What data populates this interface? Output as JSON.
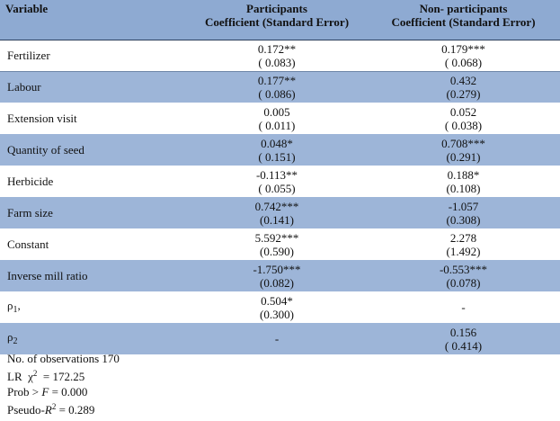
{
  "header": {
    "variable": "Variable",
    "participants_line1": "Participants",
    "participants_line2": "Coefficient (Standard Error)",
    "nonparticipants_line1": "Non- participants",
    "nonparticipants_line2": "Coefficient (Standard Error)"
  },
  "rows": [
    {
      "variable": "Fertilizer",
      "p_coef": "0.172**",
      "p_se": "( 0.083)",
      "n_coef": "0.179***",
      "n_se": "( 0.068)"
    },
    {
      "variable": "Labour",
      "p_coef": "0.177**",
      "p_se": "( 0.086)",
      "n_coef": "0.432",
      "n_se": "(0.279)"
    },
    {
      "variable": "Extension visit",
      "p_coef": "0.005",
      "p_se": "( 0.011)",
      "n_coef": "0.052",
      "n_se": "( 0.038)"
    },
    {
      "variable": "Quantity of seed",
      "p_coef": "0.048*",
      "p_se": "( 0.151)",
      "n_coef": "0.708***",
      "n_se": "(0.291)"
    },
    {
      "variable": "Herbicide",
      "p_coef": "-0.113**",
      "p_se": "( 0.055)",
      "n_coef": "0.188*",
      "n_se": "(0.108)"
    },
    {
      "variable": "Farm size",
      "p_coef": "0.742***",
      "p_se": "(0.141)",
      "n_coef": "-1.057",
      "n_se": "(0.308)"
    },
    {
      "variable": "Constant",
      "p_coef": "5.592***",
      "p_se": "(0.590)",
      "n_coef": "2.278",
      "n_se": "(1.492)"
    },
    {
      "variable": "Inverse mill ratio",
      "p_coef": "-1.750***",
      "p_se": "(0.082)",
      "n_coef": "-0.553***",
      "n_se": "(0.078)"
    }
  ],
  "rho1": {
    "label": "ρ",
    "sub": "1",
    "suffix": ",",
    "p_coef": "0.504*",
    "p_se": "(0.300)",
    "n_coef": "-",
    "n_se": ""
  },
  "rho2": {
    "label": "ρ",
    "sub": "2",
    "suffix": "",
    "p_coef": "-",
    "p_se": "",
    "n_coef": "0.156",
    "n_se": "( 0.414)"
  },
  "stats": {
    "observations": "No. of observations 170",
    "lr_prefix": "LR  χ",
    "lr_sup": "2",
    "lr_value": "  = 172.25",
    "prob_prefix": "Prob > ",
    "prob_var": "F",
    "prob_value": " = 0.000",
    "pseudo_prefix": "Pseudo-",
    "pseudo_var": "R",
    "pseudo_sup": "2",
    "pseudo_value": " = 0.289"
  }
}
